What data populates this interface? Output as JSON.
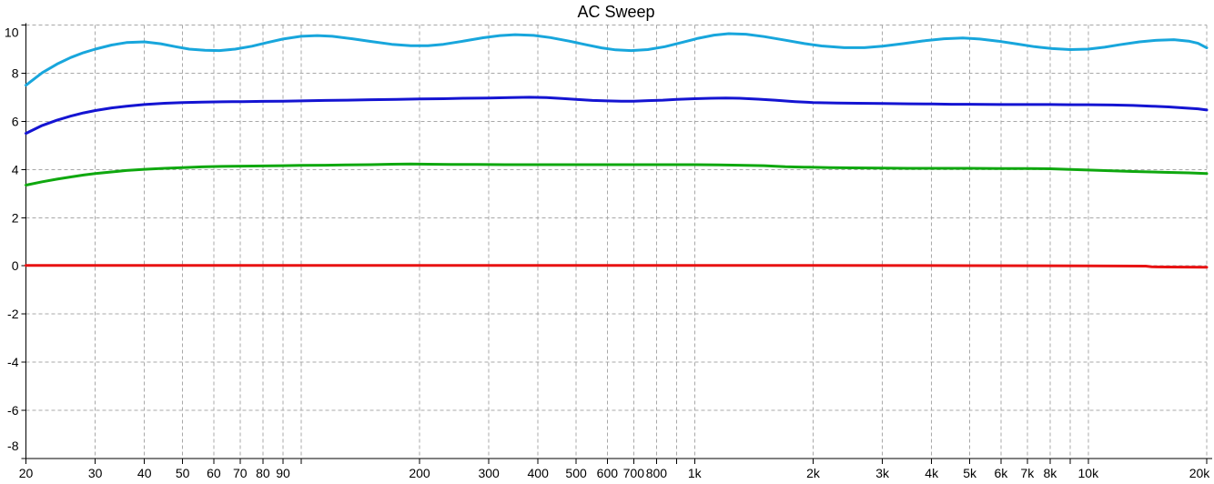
{
  "chart_data": {
    "type": "line",
    "title": "AC Sweep",
    "grid": true,
    "legend": "none",
    "colors": {
      "grid": "#A8A8A8",
      "axis": "#000000",
      "background": "#FFFFFF",
      "title": "#000000"
    },
    "x_axis": {
      "scale": "log",
      "min": 20,
      "max": 20000,
      "ticks": [
        {
          "value": 20,
          "label": "20"
        },
        {
          "value": 30,
          "label": "30"
        },
        {
          "value": 40,
          "label": "40"
        },
        {
          "value": 50,
          "label": "50"
        },
        {
          "value": 60,
          "label": "60"
        },
        {
          "value": 70,
          "label": "70"
        },
        {
          "value": 80,
          "label": "80"
        },
        {
          "value": 90,
          "label": "90"
        },
        {
          "value": 100,
          "label": ""
        },
        {
          "value": 200,
          "label": "200"
        },
        {
          "value": 300,
          "label": "300"
        },
        {
          "value": 400,
          "label": "400"
        },
        {
          "value": 500,
          "label": "500"
        },
        {
          "value": 600,
          "label": "600"
        },
        {
          "value": 700,
          "label": "700"
        },
        {
          "value": 800,
          "label": "800"
        },
        {
          "value": 900,
          "label": ""
        },
        {
          "value": 1000,
          "label": "1k"
        },
        {
          "value": 2000,
          "label": "2k"
        },
        {
          "value": 3000,
          "label": "3k"
        },
        {
          "value": 4000,
          "label": "4k"
        },
        {
          "value": 5000,
          "label": "5k"
        },
        {
          "value": 6000,
          "label": "6k"
        },
        {
          "value": 7000,
          "label": "7k"
        },
        {
          "value": 8000,
          "label": "8k"
        },
        {
          "value": 9000,
          "label": ""
        },
        {
          "value": 10000,
          "label": "10k"
        },
        {
          "value": 20000,
          "label": "20k"
        }
      ]
    },
    "y_axis": {
      "scale": "linear",
      "min": -8,
      "max": 10,
      "tick_step": 2,
      "ticks": [
        {
          "value": 10,
          "label": "10"
        },
        {
          "value": 8,
          "label": "8"
        },
        {
          "value": 6,
          "label": "6"
        },
        {
          "value": 4,
          "label": "4"
        },
        {
          "value": 2,
          "label": "2"
        },
        {
          "value": 0,
          "label": "0"
        },
        {
          "value": -2,
          "label": "-2"
        },
        {
          "value": -4,
          "label": "-4"
        },
        {
          "value": -6,
          "label": "-6"
        },
        {
          "value": -8,
          "label": "-8"
        }
      ]
    },
    "series": [
      {
        "name": "trace-1-cyan",
        "color": "#18A6DC",
        "points": [
          [
            20,
            7.5
          ],
          [
            22,
            8.02
          ],
          [
            24,
            8.38
          ],
          [
            26,
            8.65
          ],
          [
            28,
            8.85
          ],
          [
            30,
            9.0
          ],
          [
            33,
            9.17
          ],
          [
            36,
            9.27
          ],
          [
            40,
            9.3
          ],
          [
            44,
            9.22
          ],
          [
            48,
            9.1
          ],
          [
            52,
            9.0
          ],
          [
            57,
            8.95
          ],
          [
            62,
            8.94
          ],
          [
            68,
            9.0
          ],
          [
            75,
            9.12
          ],
          [
            82,
            9.27
          ],
          [
            90,
            9.42
          ],
          [
            100,
            9.53
          ],
          [
            110,
            9.56
          ],
          [
            120,
            9.53
          ],
          [
            135,
            9.43
          ],
          [
            150,
            9.32
          ],
          [
            170,
            9.2
          ],
          [
            190,
            9.14
          ],
          [
            210,
            9.14
          ],
          [
            230,
            9.2
          ],
          [
            260,
            9.34
          ],
          [
            290,
            9.47
          ],
          [
            320,
            9.56
          ],
          [
            350,
            9.6
          ],
          [
            390,
            9.57
          ],
          [
            430,
            9.48
          ],
          [
            480,
            9.33
          ],
          [
            530,
            9.18
          ],
          [
            580,
            9.05
          ],
          [
            630,
            8.97
          ],
          [
            690,
            8.94
          ],
          [
            760,
            8.98
          ],
          [
            840,
            9.1
          ],
          [
            930,
            9.28
          ],
          [
            1020,
            9.45
          ],
          [
            1120,
            9.58
          ],
          [
            1220,
            9.64
          ],
          [
            1350,
            9.62
          ],
          [
            1500,
            9.52
          ],
          [
            1700,
            9.37
          ],
          [
            1900,
            9.23
          ],
          [
            2100,
            9.13
          ],
          [
            2400,
            9.06
          ],
          [
            2700,
            9.06
          ],
          [
            3000,
            9.12
          ],
          [
            3400,
            9.23
          ],
          [
            3800,
            9.34
          ],
          [
            4300,
            9.43
          ],
          [
            4800,
            9.46
          ],
          [
            5300,
            9.42
          ],
          [
            5900,
            9.33
          ],
          [
            6600,
            9.21
          ],
          [
            7300,
            9.1
          ],
          [
            8100,
            9.02
          ],
          [
            9000,
            8.98
          ],
          [
            10000,
            9.0
          ],
          [
            11000,
            9.08
          ],
          [
            12000,
            9.18
          ],
          [
            13500,
            9.3
          ],
          [
            15000,
            9.37
          ],
          [
            16500,
            9.39
          ],
          [
            18000,
            9.33
          ],
          [
            19000,
            9.24
          ],
          [
            20000,
            9.05
          ]
        ]
      },
      {
        "name": "trace-2-blue",
        "color": "#1414D2",
        "points": [
          [
            20,
            5.5
          ],
          [
            22,
            5.83
          ],
          [
            24,
            6.05
          ],
          [
            26,
            6.22
          ],
          [
            28,
            6.35
          ],
          [
            30,
            6.45
          ],
          [
            33,
            6.56
          ],
          [
            36,
            6.63
          ],
          [
            40,
            6.7
          ],
          [
            45,
            6.75
          ],
          [
            50,
            6.78
          ],
          [
            56,
            6.8
          ],
          [
            63,
            6.81
          ],
          [
            71,
            6.82
          ],
          [
            80,
            6.83
          ],
          [
            90,
            6.84
          ],
          [
            100,
            6.85
          ],
          [
            115,
            6.87
          ],
          [
            130,
            6.88
          ],
          [
            150,
            6.9
          ],
          [
            175,
            6.91
          ],
          [
            200,
            6.93
          ],
          [
            230,
            6.94
          ],
          [
            260,
            6.96
          ],
          [
            300,
            6.97
          ],
          [
            340,
            6.99
          ],
          [
            380,
            7.0
          ],
          [
            420,
            6.99
          ],
          [
            460,
            6.95
          ],
          [
            500,
            6.91
          ],
          [
            550,
            6.87
          ],
          [
            600,
            6.85
          ],
          [
            650,
            6.84
          ],
          [
            700,
            6.84
          ],
          [
            760,
            6.86
          ],
          [
            830,
            6.88
          ],
          [
            900,
            6.91
          ],
          [
            1000,
            6.94
          ],
          [
            1100,
            6.96
          ],
          [
            1200,
            6.97
          ],
          [
            1300,
            6.96
          ],
          [
            1450,
            6.92
          ],
          [
            1600,
            6.88
          ],
          [
            1800,
            6.82
          ],
          [
            2000,
            6.78
          ],
          [
            2300,
            6.76
          ],
          [
            2600,
            6.75
          ],
          [
            3000,
            6.74
          ],
          [
            3500,
            6.73
          ],
          [
            4000,
            6.72
          ],
          [
            4500,
            6.71
          ],
          [
            5000,
            6.71
          ],
          [
            6000,
            6.7
          ],
          [
            7000,
            6.7
          ],
          [
            8000,
            6.7
          ],
          [
            9000,
            6.69
          ],
          [
            10000,
            6.69
          ],
          [
            11500,
            6.68
          ],
          [
            13000,
            6.66
          ],
          [
            14500,
            6.63
          ],
          [
            16000,
            6.6
          ],
          [
            17500,
            6.56
          ],
          [
            19000,
            6.52
          ],
          [
            20000,
            6.47
          ]
        ]
      },
      {
        "name": "trace-3-green",
        "color": "#0FA80F",
        "points": [
          [
            20,
            3.35
          ],
          [
            22,
            3.49
          ],
          [
            24,
            3.6
          ],
          [
            26,
            3.69
          ],
          [
            28,
            3.77
          ],
          [
            30,
            3.83
          ],
          [
            33,
            3.9
          ],
          [
            36,
            3.96
          ],
          [
            40,
            4.01
          ],
          [
            45,
            4.05
          ],
          [
            50,
            4.08
          ],
          [
            56,
            4.11
          ],
          [
            63,
            4.13
          ],
          [
            71,
            4.14
          ],
          [
            80,
            4.15
          ],
          [
            90,
            4.16
          ],
          [
            100,
            4.17
          ],
          [
            115,
            4.18
          ],
          [
            130,
            4.19
          ],
          [
            150,
            4.2
          ],
          [
            170,
            4.22
          ],
          [
            190,
            4.23
          ],
          [
            210,
            4.22
          ],
          [
            240,
            4.21
          ],
          [
            280,
            4.21
          ],
          [
            330,
            4.2
          ],
          [
            400,
            4.2
          ],
          [
            500,
            4.2
          ],
          [
            600,
            4.2
          ],
          [
            700,
            4.2
          ],
          [
            800,
            4.2
          ],
          [
            900,
            4.2
          ],
          [
            1000,
            4.2
          ],
          [
            1150,
            4.19
          ],
          [
            1300,
            4.18
          ],
          [
            1500,
            4.16
          ],
          [
            1700,
            4.12
          ],
          [
            1900,
            4.1
          ],
          [
            2200,
            4.08
          ],
          [
            2500,
            4.07
          ],
          [
            3000,
            4.06
          ],
          [
            3500,
            4.05
          ],
          [
            4000,
            4.05
          ],
          [
            5000,
            4.05
          ],
          [
            6000,
            4.04
          ],
          [
            7000,
            4.04
          ],
          [
            8000,
            4.03
          ],
          [
            9000,
            4.0
          ],
          [
            10000,
            3.98
          ],
          [
            11500,
            3.95
          ],
          [
            13000,
            3.92
          ],
          [
            14500,
            3.9
          ],
          [
            16000,
            3.88
          ],
          [
            18000,
            3.86
          ],
          [
            20000,
            3.83
          ]
        ]
      },
      {
        "name": "trace-4-red",
        "color": "#E81212",
        "points": [
          [
            20,
            0.02
          ],
          [
            500,
            0.02
          ],
          [
            2000,
            0.02
          ],
          [
            5000,
            0.01
          ],
          [
            10000,
            0.0
          ],
          [
            14000,
            -0.01
          ],
          [
            14500,
            -0.04
          ],
          [
            16000,
            -0.05
          ],
          [
            20000,
            -0.06
          ]
        ]
      }
    ]
  }
}
